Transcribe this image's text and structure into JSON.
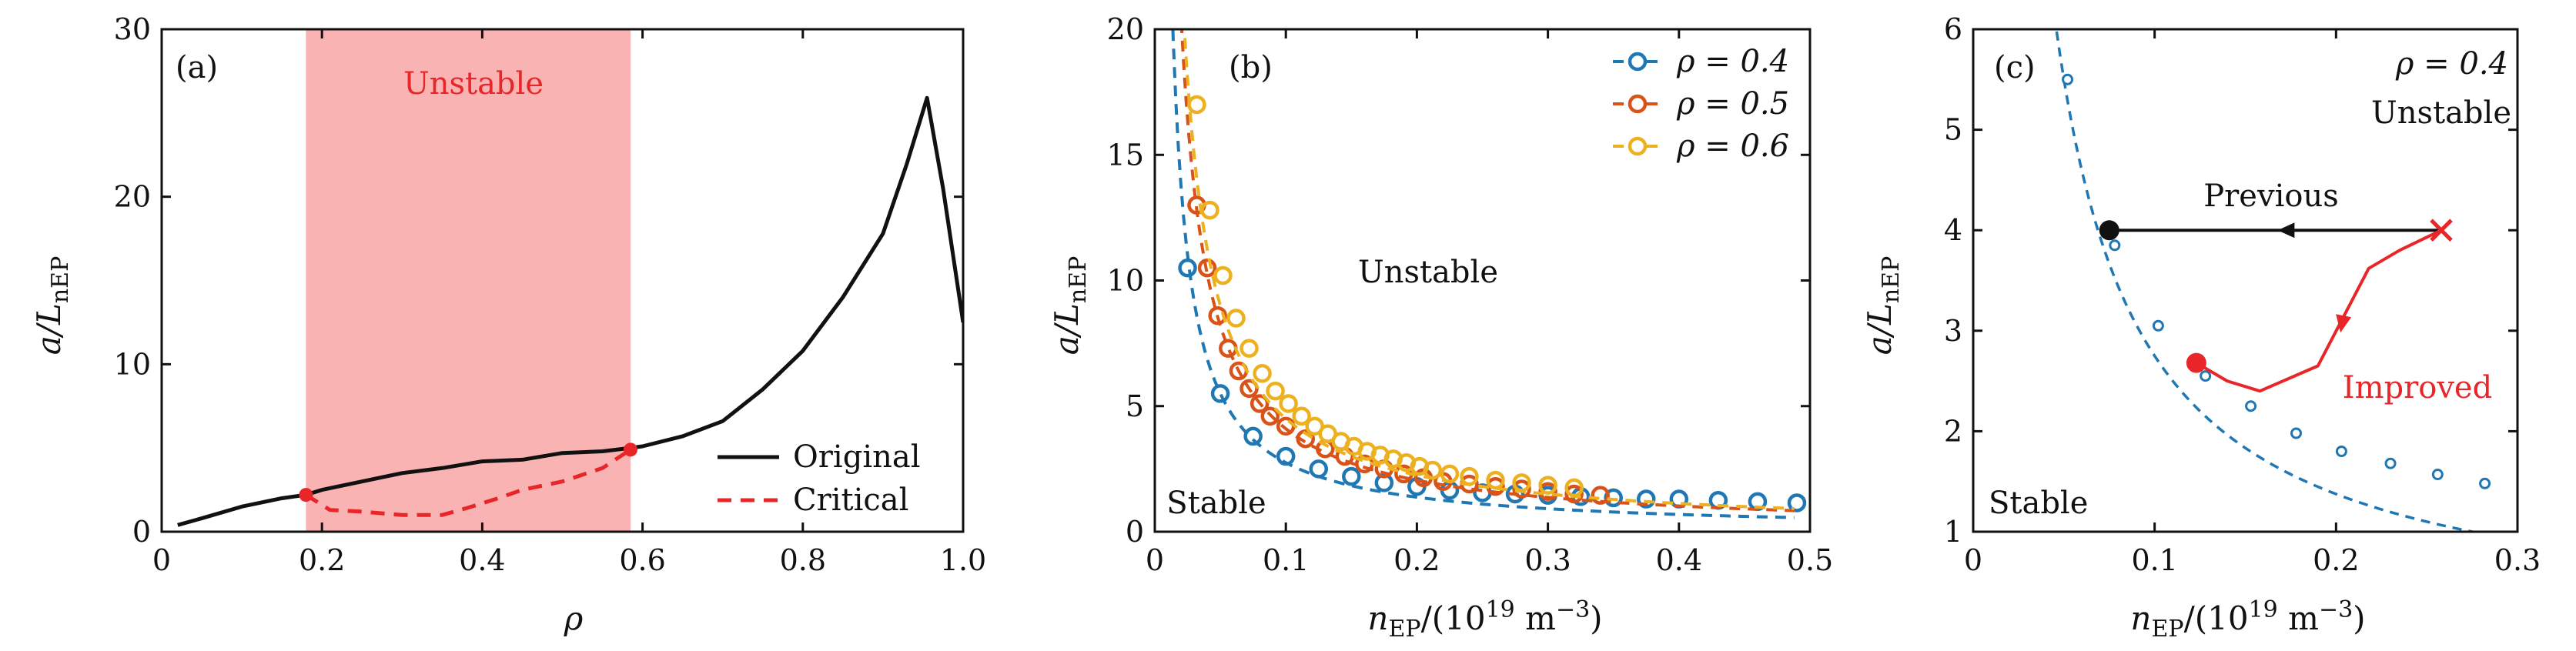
{
  "chart_data": [
    {
      "panel": "(a)",
      "type": "line",
      "xlabel": "ρ",
      "ylabel": "a/L_nEP",
      "ylabel_main": "a/L",
      "ylabel_sub": "nEP",
      "xlim": [
        0,
        1
      ],
      "ylim": [
        0,
        30
      ],
      "xticks": [
        0,
        0.2,
        0.4,
        0.6,
        0.8,
        1.0
      ],
      "xticklabels": [
        "0",
        "0.2",
        "0.4",
        "0.6",
        "0.8",
        "1.0"
      ],
      "yticks": [
        0,
        10,
        20,
        30
      ],
      "yticklabels": [
        "0",
        "10",
        "20",
        "30"
      ],
      "shaded_region": {
        "x": [
          0.18,
          0.585
        ],
        "label": "Unstable",
        "color": "#f9b3b3"
      },
      "legend_position": "bottom-right",
      "series": [
        {
          "name": "Original",
          "style": "solid",
          "color": "#111111",
          "x": [
            0.02,
            0.05,
            0.1,
            0.15,
            0.18,
            0.2,
            0.25,
            0.3,
            0.35,
            0.4,
            0.45,
            0.5,
            0.55,
            0.585,
            0.6,
            0.65,
            0.7,
            0.75,
            0.8,
            0.85,
            0.9,
            0.93,
            0.955,
            0.975,
            1.0
          ],
          "y": [
            0.4,
            0.8,
            1.5,
            2.0,
            2.2,
            2.5,
            3.0,
            3.5,
            3.8,
            4.2,
            4.3,
            4.7,
            4.8,
            5.0,
            5.1,
            5.7,
            6.6,
            8.5,
            10.8,
            14.0,
            17.8,
            22.0,
            25.9,
            20.5,
            12.5
          ]
        },
        {
          "name": "Critical",
          "style": "dashed",
          "color": "#e8262a",
          "x": [
            0.18,
            0.21,
            0.25,
            0.3,
            0.35,
            0.38,
            0.42,
            0.45,
            0.5,
            0.55,
            0.585
          ],
          "y": [
            2.2,
            1.3,
            1.2,
            1.0,
            1.0,
            1.4,
            2.0,
            2.5,
            3.0,
            3.8,
            4.9
          ]
        }
      ],
      "markers": [
        {
          "x": 0.18,
          "y": 2.2,
          "color": "#e8262a"
        },
        {
          "x": 0.585,
          "y": 4.9,
          "color": "#e8262a"
        }
      ]
    },
    {
      "panel": "(b)",
      "type": "scatter",
      "xlabel": "n_EP/(10^19 m^-3)",
      "ylabel": "a/L_nEP",
      "ylabel_main": "a/L",
      "ylabel_sub": "nEP",
      "xlim": [
        0,
        0.5
      ],
      "ylim": [
        0,
        20
      ],
      "xticks": [
        0,
        0.1,
        0.2,
        0.3,
        0.4,
        0.5
      ],
      "xticklabels": [
        "0",
        "0.1",
        "0.2",
        "0.3",
        "0.4",
        "0.5"
      ],
      "yticks": [
        0,
        5,
        10,
        15,
        20
      ],
      "yticklabels": [
        "0",
        "5",
        "10",
        "15",
        "20"
      ],
      "annotations": [
        "Unstable",
        "Stable"
      ],
      "legend_position": "top-right",
      "series": [
        {
          "name": "ρ = 0.4",
          "color": "#1f77b4",
          "k": 0.275,
          "x": [
            0.025,
            0.05,
            0.075,
            0.1,
            0.125,
            0.15,
            0.175,
            0.2,
            0.225,
            0.25,
            0.275,
            0.3,
            0.325,
            0.35,
            0.375,
            0.4,
            0.43,
            0.46,
            0.49
          ],
          "y": [
            10.5,
            5.5,
            3.8,
            3.0,
            2.5,
            2.2,
            1.95,
            1.8,
            1.65,
            1.55,
            1.5,
            1.45,
            1.4,
            1.35,
            1.3,
            1.3,
            1.25,
            1.2,
            1.15
          ]
        },
        {
          "name": "ρ = 0.5",
          "color": "#d95319",
          "k": 0.41,
          "x": [
            0.032,
            0.04,
            0.048,
            0.056,
            0.064,
            0.072,
            0.08,
            0.088,
            0.1,
            0.115,
            0.13,
            0.145,
            0.16,
            0.175,
            0.19,
            0.205,
            0.22,
            0.24,
            0.26,
            0.28,
            0.3,
            0.32,
            0.34
          ],
          "y": [
            13.0,
            10.5,
            8.6,
            7.3,
            6.4,
            5.7,
            5.1,
            4.6,
            4.2,
            3.7,
            3.3,
            3.0,
            2.7,
            2.5,
            2.3,
            2.15,
            2.0,
            1.9,
            1.8,
            1.7,
            1.6,
            1.5,
            1.45
          ]
        },
        {
          "name": "ρ = 0.6",
          "color": "#edb120",
          "k": 0.45,
          "x": [
            0.032,
            0.042,
            0.052,
            0.062,
            0.072,
            0.082,
            0.092,
            0.102,
            0.112,
            0.122,
            0.132,
            0.142,
            0.152,
            0.162,
            0.172,
            0.182,
            0.192,
            0.202,
            0.212,
            0.225,
            0.24,
            0.26,
            0.28,
            0.3,
            0.32
          ],
          "y": [
            17.0,
            12.8,
            10.2,
            8.5,
            7.3,
            6.3,
            5.6,
            5.1,
            4.6,
            4.2,
            3.9,
            3.6,
            3.4,
            3.2,
            3.05,
            2.9,
            2.75,
            2.6,
            2.45,
            2.3,
            2.2,
            2.05,
            1.95,
            1.85,
            1.75
          ]
        }
      ]
    },
    {
      "panel": "(c)",
      "type": "scatter",
      "xlabel": "n_EP/(10^19 m^-3)",
      "ylabel": "a/L_nEP",
      "ylabel_main": "a/L",
      "ylabel_sub": "nEP",
      "xlim": [
        0,
        0.3
      ],
      "ylim": [
        1,
        6
      ],
      "xticks": [
        0,
        0.1,
        0.2,
        0.3
      ],
      "xticklabels": [
        "0",
        "0.1",
        "0.2",
        "0.3"
      ],
      "yticks": [
        1,
        2,
        3,
        4,
        5,
        6
      ],
      "yticklabels": [
        "1",
        "2",
        "3",
        "4",
        "5",
        "6"
      ],
      "annotations": [
        "ρ = 0.4",
        "Unstable",
        "Stable",
        "Previous",
        "Improved"
      ],
      "curve": {
        "style": "dashed",
        "color": "#1f77b4",
        "k": 0.275
      },
      "series": [
        {
          "name": "ρ = 0.4",
          "color": "#1f77b4",
          "x": [
            0.052,
            0.078,
            0.102,
            0.128,
            0.153,
            0.178,
            0.203,
            0.23,
            0.256,
            0.282
          ],
          "y": [
            5.5,
            3.85,
            3.05,
            2.55,
            2.25,
            1.98,
            1.8,
            1.68,
            1.57,
            1.48
          ]
        }
      ],
      "previous_arrow": {
        "from": [
          0.258,
          4.0
        ],
        "to": [
          0.075,
          4.0
        ],
        "color": "#111111",
        "label": "Previous"
      },
      "improved_path": {
        "x": [
          0.258,
          0.235,
          0.218,
          0.19,
          0.158,
          0.14,
          0.123
        ],
        "y": [
          4.0,
          3.8,
          3.62,
          2.65,
          2.4,
          2.5,
          2.68
        ],
        "color": "#e8262a",
        "label": "Improved"
      },
      "markers": [
        {
          "x": 0.075,
          "y": 4.0,
          "shape": "circle",
          "color": "#111111"
        },
        {
          "x": 0.123,
          "y": 2.68,
          "shape": "circle",
          "color": "#e8262a"
        },
        {
          "x": 0.258,
          "y": 4.0,
          "shape": "x",
          "color": "#e8262a"
        }
      ]
    }
  ]
}
